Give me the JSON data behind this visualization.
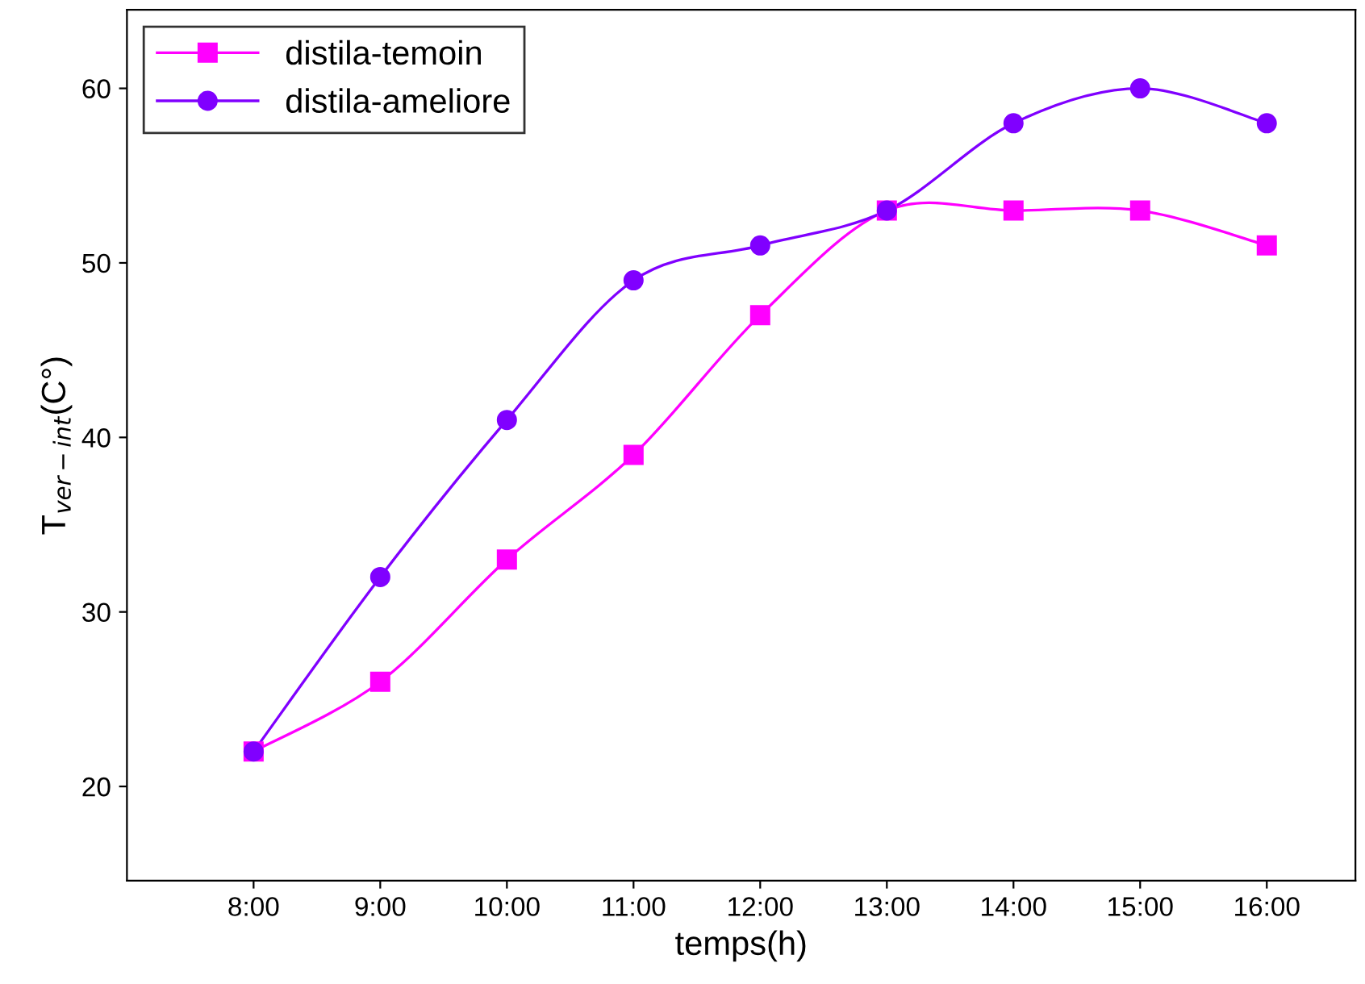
{
  "chart_data": {
    "type": "line",
    "xlabel": "temps(h)",
    "ylabel": "T$_{ver−int}$(C°)",
    "x": [
      8,
      9,
      10,
      11,
      12,
      13,
      14,
      15,
      16
    ],
    "xticks": [
      {
        "value": 8,
        "label": "8:00"
      },
      {
        "value": 9,
        "label": "9:00"
      },
      {
        "value": 10,
        "label": "10:00"
      },
      {
        "value": 11,
        "label": "11:00"
      },
      {
        "value": 12,
        "label": "12:00"
      },
      {
        "value": 13,
        "label": "13:00"
      },
      {
        "value": 14,
        "label": "14:00"
      },
      {
        "value": 15,
        "label": "15:00"
      },
      {
        "value": 16,
        "label": "16:00"
      }
    ],
    "xlim": [
      7,
      16.7
    ],
    "ylim": [
      14.6,
      64.5
    ],
    "yticks": [
      20,
      30,
      40,
      50,
      60
    ],
    "series": [
      {
        "name": "distila-temoin",
        "color": "#ff00ff",
        "marker": "square",
        "values": [
          22,
          26,
          33,
          39,
          47,
          53,
          53,
          53,
          51
        ]
      },
      {
        "name": "distila-ameliore",
        "color": "#8000ff",
        "marker": "circle",
        "values": [
          22,
          32,
          41,
          49,
          51,
          53,
          58,
          60,
          58
        ]
      }
    ],
    "legend": "top left",
    "grid": false
  }
}
